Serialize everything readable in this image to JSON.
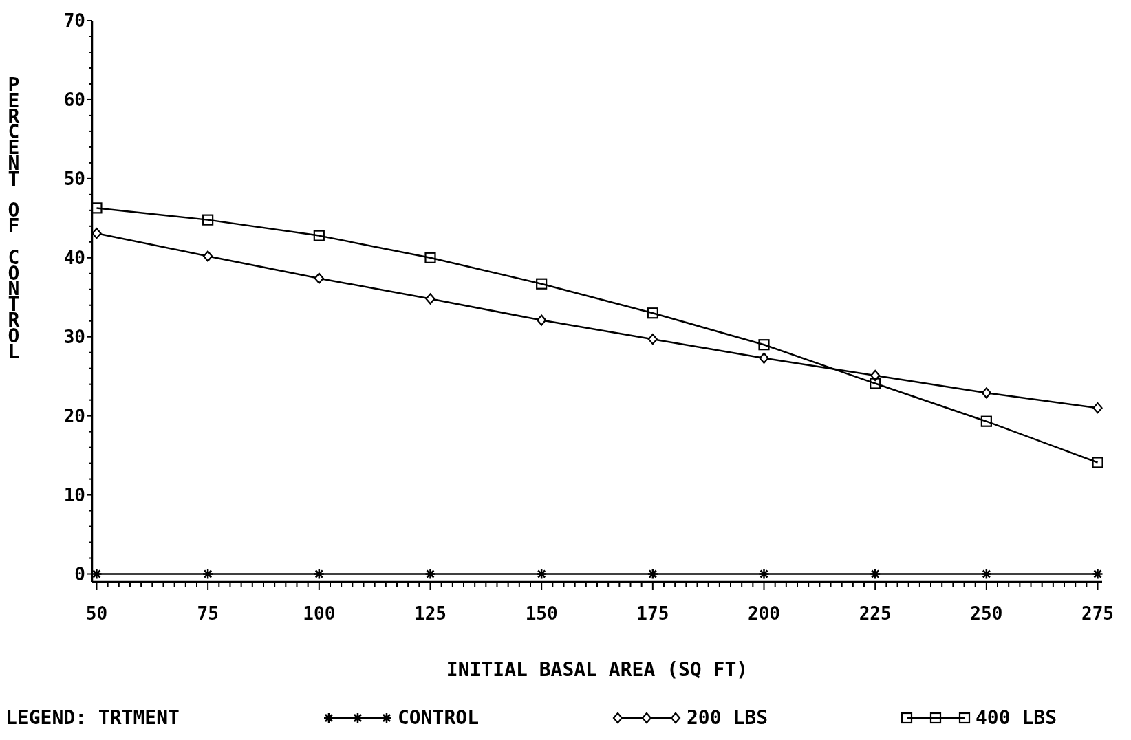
{
  "chart_data": {
    "type": "line",
    "xlabel": "INITIAL BASAL AREA (SQ FT)",
    "ylabel": "PERCENT OF CONTROL",
    "legend_title": "LEGEND: TRTMENT",
    "legend": "bottom",
    "grid": false,
    "x": [
      50,
      75,
      100,
      125,
      150,
      175,
      200,
      225,
      250,
      275
    ],
    "xlim": [
      49,
      276
    ],
    "ylim": [
      -1,
      70
    ],
    "xticks": [
      50,
      {
        "value": 52.5,
        "label": null
      },
      {
        "value": 55,
        "label": null
      },
      {
        "value": 57.5,
        "label": null
      },
      {
        "value": 60,
        "label": null
      },
      {
        "value": 62.5,
        "label": null
      },
      {
        "value": 65,
        "label": null
      },
      {
        "value": 67.5,
        "label": null
      },
      {
        "value": 70,
        "label": null
      },
      {
        "value": 72.5,
        "label": null
      },
      75,
      {
        "value": 77.5,
        "label": null
      },
      {
        "value": 80,
        "label": null
      },
      {
        "value": 82.5,
        "label": null
      },
      {
        "value": 85,
        "label": null
      },
      {
        "value": 87.5,
        "label": null
      },
      {
        "value": 90,
        "label": null
      },
      {
        "value": 92.5,
        "label": null
      },
      {
        "value": 95,
        "label": null
      },
      {
        "value": 97.5,
        "label": null
      },
      100,
      {
        "value": 102.5,
        "label": null
      },
      {
        "value": 105,
        "label": null
      },
      {
        "value": 107.5,
        "label": null
      },
      {
        "value": 110,
        "label": null
      },
      {
        "value": 112.5,
        "label": null
      },
      {
        "value": 115,
        "label": null
      },
      {
        "value": 117.5,
        "label": null
      },
      {
        "value": 120,
        "label": null
      },
      {
        "value": 122.5,
        "label": null
      },
      125,
      {
        "value": 127.5,
        "label": null
      },
      {
        "value": 130,
        "label": null
      },
      {
        "value": 132.5,
        "label": null
      },
      {
        "value": 135,
        "label": null
      },
      {
        "value": 137.5,
        "label": null
      },
      {
        "value": 140,
        "label": null
      },
      {
        "value": 142.5,
        "label": null
      },
      {
        "value": 145,
        "label": null
      },
      {
        "value": 147.5,
        "label": null
      },
      150,
      {
        "value": 152.5,
        "label": null
      },
      {
        "value": 155,
        "label": null
      },
      {
        "value": 157.5,
        "label": null
      },
      {
        "value": 160,
        "label": null
      },
      {
        "value": 162.5,
        "label": null
      },
      {
        "value": 165,
        "label": null
      },
      {
        "value": 167.5,
        "label": null
      },
      {
        "value": 170,
        "label": null
      },
      {
        "value": 172.5,
        "label": null
      },
      175,
      {
        "value": 177.5,
        "label": null
      },
      {
        "value": 180,
        "label": null
      },
      {
        "value": 182.5,
        "label": null
      },
      {
        "value": 185,
        "label": null
      },
      {
        "value": 187.5,
        "label": null
      },
      {
        "value": 190,
        "label": null
      },
      {
        "value": 192.5,
        "label": null
      },
      {
        "value": 195,
        "label": null
      },
      {
        "value": 197.5,
        "label": null
      },
      200,
      {
        "value": 202.5,
        "label": null
      },
      {
        "value": 205,
        "label": null
      },
      {
        "value": 207.5,
        "label": null
      },
      {
        "value": 210,
        "label": null
      },
      {
        "value": 212.5,
        "label": null
      },
      {
        "value": 215,
        "label": null
      },
      {
        "value": 217.5,
        "label": null
      },
      {
        "value": 220,
        "label": null
      },
      {
        "value": 222.5,
        "label": null
      },
      225,
      {
        "value": 227.5,
        "label": null
      },
      {
        "value": 230,
        "label": null
      },
      {
        "value": 232.5,
        "label": null
      },
      {
        "value": 235,
        "label": null
      },
      {
        "value": 237.5,
        "label": null
      },
      {
        "value": 240,
        "label": null
      },
      {
        "value": 242.5,
        "label": null
      },
      {
        "value": 245,
        "label": null
      },
      {
        "value": 247.5,
        "label": null
      },
      250,
      {
        "value": 252.5,
        "label": null
      },
      {
        "value": 255,
        "label": null
      },
      {
        "value": 257.5,
        "label": null
      },
      {
        "value": 260,
        "label": null
      },
      {
        "value": 262.5,
        "label": null
      },
      {
        "value": 265,
        "label": null
      },
      {
        "value": 267.5,
        "label": null
      },
      {
        "value": 270,
        "label": null
      },
      {
        "value": 272.5,
        "label": null
      },
      275
    ],
    "yticks": [
      0,
      {
        "value": 2,
        "label": null
      },
      {
        "value": 4,
        "label": null
      },
      {
        "value": 6,
        "label": null
      },
      {
        "value": 8,
        "label": null
      },
      10,
      {
        "value": 12,
        "label": null
      },
      {
        "value": 14,
        "label": null
      },
      {
        "value": 16,
        "label": null
      },
      {
        "value": 18,
        "label": null
      },
      20,
      {
        "value": 22,
        "label": null
      },
      {
        "value": 24,
        "label": null
      },
      {
        "value": 26,
        "label": null
      },
      {
        "value": 28,
        "label": null
      },
      30,
      {
        "value": 32,
        "label": null
      },
      {
        "value": 34,
        "label": null
      },
      {
        "value": 36,
        "label": null
      },
      {
        "value": 38,
        "label": null
      },
      40,
      {
        "value": 42,
        "label": null
      },
      {
        "value": 44,
        "label": null
      },
      {
        "value": 46,
        "label": null
      },
      {
        "value": 48,
        "label": null
      },
      50,
      {
        "value": 52,
        "label": null
      },
      {
        "value": 54,
        "label": null
      },
      {
        "value": 56,
        "label": null
      },
      {
        "value": 58,
        "label": null
      },
      60,
      {
        "value": 62,
        "label": null
      },
      {
        "value": 64,
        "label": null
      },
      {
        "value": 66,
        "label": null
      },
      {
        "value": 68,
        "label": null
      },
      70
    ],
    "series": [
      {
        "name": "CONTROL",
        "color": "#000000",
        "marker": "cross",
        "values": [
          0,
          0,
          0,
          0,
          0,
          0,
          0,
          0,
          0,
          0
        ]
      },
      {
        "name": "200 LBS",
        "color": "#000000",
        "marker": "diamond",
        "values": [
          43.1,
          40.2,
          37.4,
          34.8,
          32.1,
          29.7,
          27.3,
          25.1,
          22.9,
          21.0
        ]
      },
      {
        "name": "400 LBS",
        "color": "#000000",
        "marker": "square",
        "values": [
          46.3,
          44.8,
          42.8,
          40.0,
          36.7,
          33.0,
          29.0,
          24.1,
          19.3,
          14.1
        ]
      }
    ]
  }
}
